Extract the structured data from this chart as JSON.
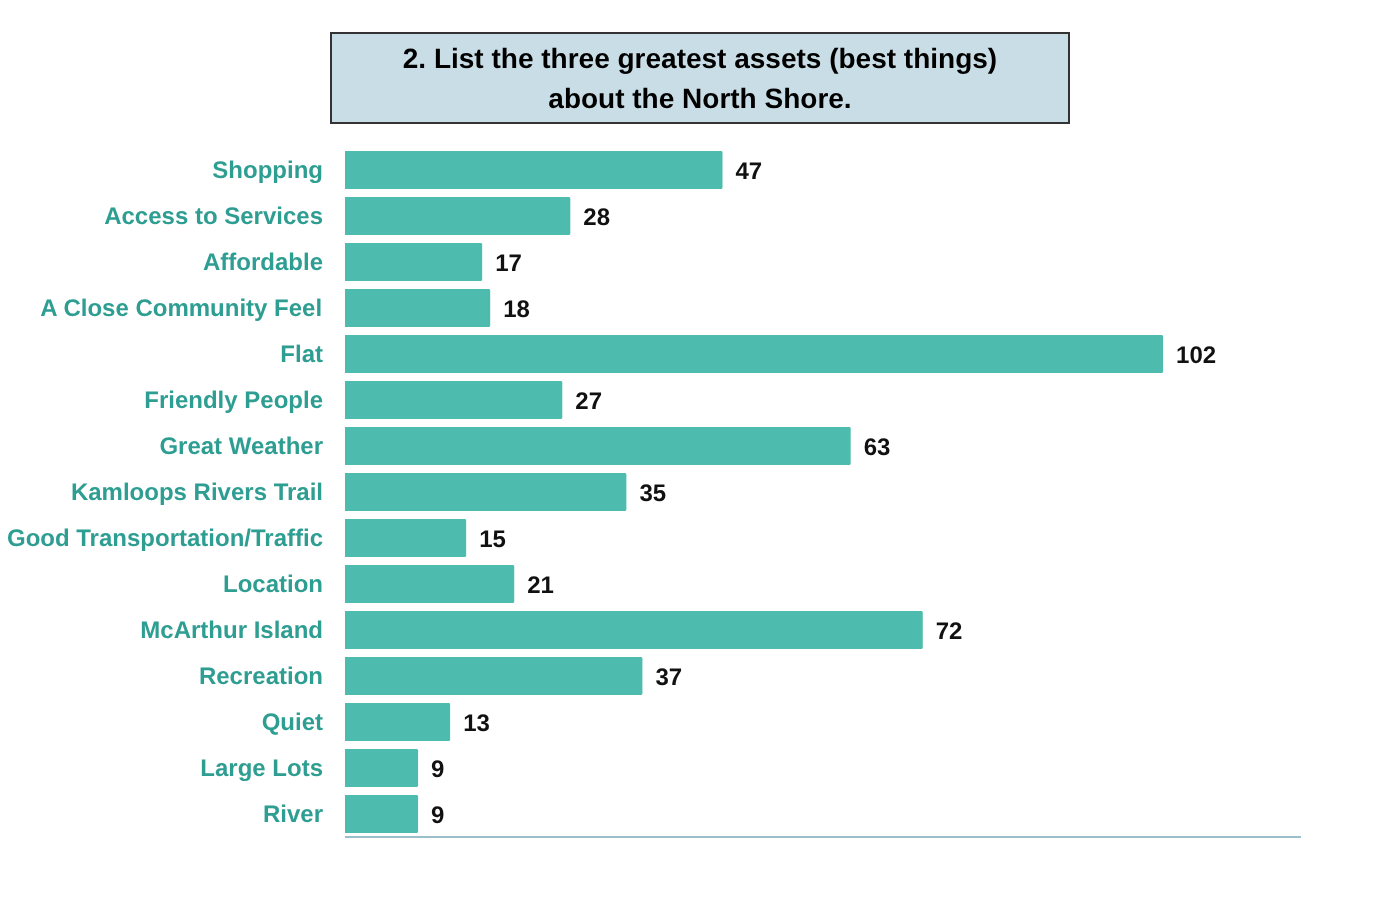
{
  "chart_data": {
    "type": "bar",
    "orientation": "horizontal",
    "title": "2. List the three greatest assets (best things) about the North Shore.",
    "categories": [
      "Shopping",
      "Access to Services",
      "Affordable",
      "A Close Community Feel",
      "Flat",
      "Friendly People",
      "Great Weather",
      "Kamloops Rivers Trail",
      "Good Transportation/Traffic",
      "Location",
      "McArthur Island",
      "Recreation",
      "Quiet",
      "Large Lots",
      "River"
    ],
    "values": [
      47,
      28,
      17,
      18,
      102,
      27,
      63,
      35,
      15,
      21,
      72,
      37,
      13,
      9,
      9
    ],
    "color": "#4dbcae",
    "data_labels": true
  }
}
